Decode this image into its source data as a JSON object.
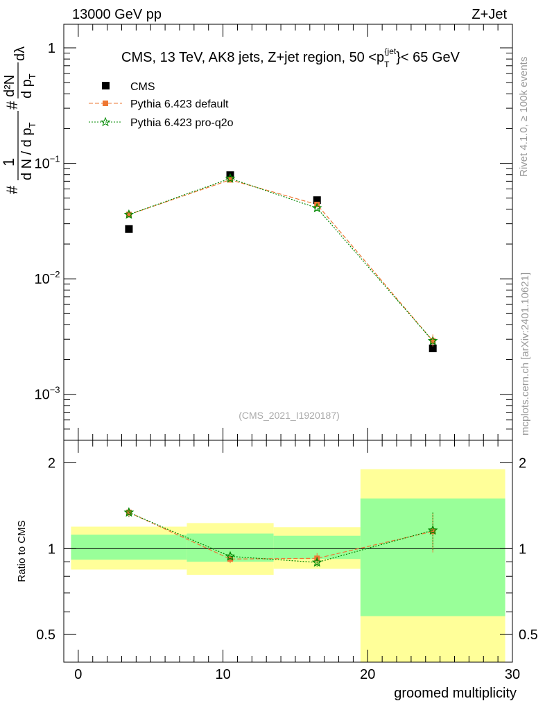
{
  "header": {
    "left": "13000 GeV pp",
    "right": "Z+Jet"
  },
  "side_labels": {
    "rivet": "Rivet 4.1.0, ≥ 100k events",
    "mcplots": "mcplots.cern.ch [arXiv:2401.10621]"
  },
  "chart_data": [
    {
      "type": "line",
      "title": "CMS, 13 TeV, AK8 jets, Z+jet region, 50 <p_T^{jet}< 65 GeV",
      "title_parts": {
        "main": "CMS, 13 TeV, AK8 jets, Z+jet region, 50 <p",
        "sub": "T",
        "sup": "{jet",
        "tail": "}< 65 GeV"
      },
      "ylabel": "1/(dN/dp_T) d²N/(dp_T dλ)",
      "ylabel_parts": {
        "frac_num": "1",
        "frac_den": "d N / d p",
        "sub": "T",
        "dd_num": "d²N",
        "dd_den": "d p",
        "lambda": "dλ",
        "hash": "#"
      },
      "yscale": "log",
      "ylim": [
        0.0004,
        1.6
      ],
      "xlim": [
        -1,
        30
      ],
      "yticks": [
        {
          "v": 1,
          "label": "1"
        },
        {
          "v": 0.1,
          "label": "10",
          "exp": "−1"
        },
        {
          "v": 0.01,
          "label": "10",
          "exp": "−2"
        },
        {
          "v": 0.001,
          "label": "10",
          "exp": "−3"
        }
      ],
      "watermark": "(CMS_2021_I1920187)",
      "legend": [
        "CMS",
        "Pythia 6.423 default",
        "Pythia 6.423 pro-q2o"
      ],
      "series": [
        {
          "name": "CMS",
          "x": [
            3.5,
            10.5,
            16.5,
            24.5
          ],
          "values": [
            0.027,
            0.079,
            0.048,
            0.0025
          ],
          "color": "#000000"
        },
        {
          "name": "Pythia 6.423 default",
          "x": [
            3.5,
            10.5,
            16.5,
            24.5
          ],
          "values": [
            0.036,
            0.072,
            0.044,
            0.0029
          ],
          "color": "#ee7733"
        },
        {
          "name": "Pythia 6.423 pro-q2o",
          "x": [
            3.5,
            10.5,
            16.5,
            24.5
          ],
          "values": [
            0.036,
            0.074,
            0.041,
            0.0029
          ],
          "color": "#008800"
        }
      ]
    },
    {
      "type": "line",
      "ylabel": "Ratio to CMS",
      "xlabel": "groomed multiplicity",
      "yscale": "log",
      "ylim": [
        0.4,
        2.4
      ],
      "xlim": [
        -1,
        30
      ],
      "xticks": [
        0,
        10,
        20,
        30
      ],
      "yticks": [
        0.5,
        1,
        2
      ],
      "bands": [
        {
          "xlo": -0.5,
          "xhi": 7.5,
          "yellow": [
            0.845,
            1.195
          ],
          "green": [
            0.915,
            1.12
          ]
        },
        {
          "xlo": 7.5,
          "xhi": 13.5,
          "yellow": [
            0.81,
            1.23
          ],
          "green": [
            0.9,
            1.13
          ]
        },
        {
          "xlo": 13.5,
          "xhi": 19.5,
          "yellow": [
            0.85,
            1.19
          ],
          "green": [
            0.92,
            1.11
          ]
        },
        {
          "xlo": 19.5,
          "xhi": 29.5,
          "yellow": [
            0.4,
            1.9
          ],
          "green": [
            0.58,
            1.5
          ]
        }
      ],
      "series": [
        {
          "name": "Pythia 6.423 default",
          "x": [
            3.5,
            10.5,
            16.5,
            24.5
          ],
          "values": [
            1.34,
            0.92,
            0.925,
            1.15
          ],
          "err": [
            0.05,
            0.03,
            0.04,
            0.18
          ],
          "color": "#ee7733"
        },
        {
          "name": "Pythia 6.423 pro-q2o",
          "x": [
            3.5,
            10.5,
            16.5,
            24.5
          ],
          "values": [
            1.34,
            0.94,
            0.895,
            1.16
          ],
          "err": [
            0.05,
            0.03,
            0.04,
            0.18
          ],
          "color": "#008800"
        }
      ]
    }
  ]
}
